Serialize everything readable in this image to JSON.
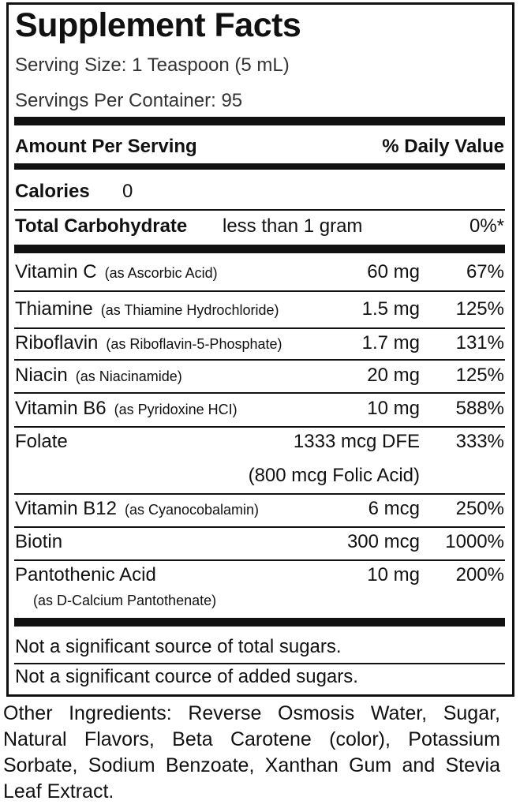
{
  "header": {
    "title": "Supplement Facts",
    "serving_size": "Serving Size:  1 Teaspoon (5 mL)",
    "servings_per_container": "Servings Per Container:  95"
  },
  "columns": {
    "amount": "Amount Per Serving",
    "daily_value": "% Daily Value"
  },
  "calories": {
    "label": "Calories",
    "value": "0"
  },
  "total_carbohydrate": {
    "label": "Total Carbohydrate",
    "amount": "less than 1 gram",
    "daily_value": "0%*"
  },
  "nutrients": [
    {
      "name": "Vitamin C",
      "source": "(as Ascorbic Acid)",
      "amount": "60 mg",
      "daily_value": "67%"
    },
    {
      "name": "Thiamine",
      "source": "(as Thiamine Hydrochloride)",
      "amount": "1.5 mg",
      "daily_value": "125%"
    },
    {
      "name": "Riboflavin",
      "source": "(as Riboflavin-5-Phosphate)",
      "amount": "1.7 mg",
      "daily_value": "131%"
    },
    {
      "name": "Niacin",
      "source": "(as Niacinamide)",
      "amount": "20 mg",
      "daily_value": "125%"
    },
    {
      "name": "Vitamin B6",
      "source": "(as Pyridoxine HCI)",
      "amount": "10 mg",
      "daily_value": "588%"
    },
    {
      "name": "Folate",
      "amount": "1333 mcg DFE",
      "amount_note": "(800 mcg Folic Acid)",
      "daily_value": "333%"
    },
    {
      "name": "Vitamin B12",
      "source": "(as Cyanocobalamin)",
      "amount": "6 mcg",
      "daily_value": "250%"
    },
    {
      "name": "Biotin",
      "amount": "300 mcg",
      "daily_value": "1000%"
    },
    {
      "name": "Pantothenic Acid",
      "source_below": "(as D-Calcium Pantothenate)",
      "amount": "10 mg",
      "daily_value": "200%"
    }
  ],
  "footnotes": [
    "Not a significant source of total sugars.",
    "Not a significant cource of added sugars."
  ],
  "other_ingredients": "Other Ingredients: Reverse Osmosis Water, Sugar, Natural Flavors, Beta Carotene (color), Potassium Sorbate, Sodium Benzoate, Xanthan Gum and Stevia Leaf Extract."
}
